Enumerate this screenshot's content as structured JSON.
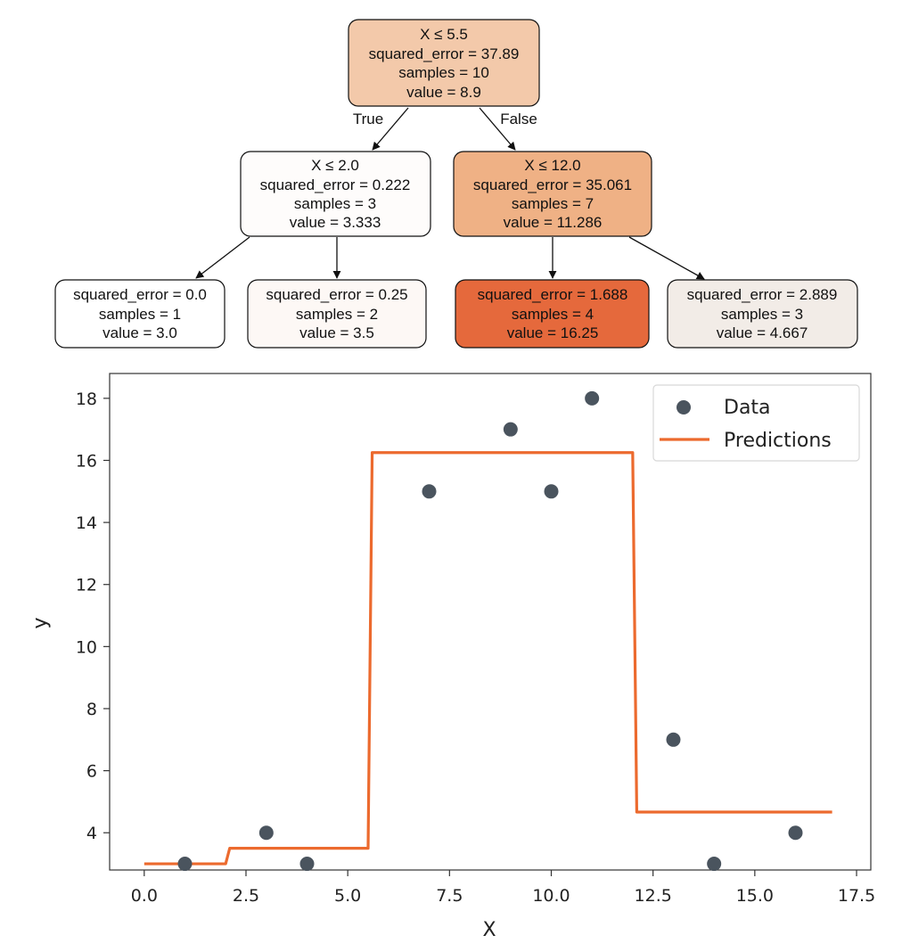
{
  "tree": {
    "edge_labels": {
      "left": "True",
      "right": "False"
    },
    "nodes": [
      {
        "id": "root",
        "lines": [
          "X ≤ 5.5",
          "squared_error = 37.89",
          "samples = 10",
          "value = 8.9"
        ],
        "fill": "#f3c9aa"
      },
      {
        "id": "left",
        "lines": [
          "X ≤ 2.0",
          "squared_error = 0.222",
          "samples = 3",
          "value = 3.333"
        ],
        "fill": "#fefcfb"
      },
      {
        "id": "right",
        "lines": [
          "X ≤ 12.0",
          "squared_error = 35.061",
          "samples = 7",
          "value = 11.286"
        ],
        "fill": "#efb185"
      },
      {
        "id": "ll",
        "lines": [
          "squared_error = 0.0",
          "samples = 1",
          "value = 3.0"
        ],
        "fill": "#ffffff"
      },
      {
        "id": "lr",
        "lines": [
          "squared_error = 0.25",
          "samples = 2",
          "value = 3.5"
        ],
        "fill": "#fdf8f5"
      },
      {
        "id": "rl",
        "lines": [
          "squared_error = 1.688",
          "samples = 4",
          "value = 16.25"
        ],
        "fill": "#e5693c"
      },
      {
        "id": "rr",
        "lines": [
          "squared_error = 2.889",
          "samples = 3",
          "value = 4.667"
        ],
        "fill": "#f2ece7"
      }
    ]
  },
  "chart_data": {
    "type": "scatter",
    "xlabel": "X",
    "ylabel": "y",
    "xlim": [
      -0.85,
      17.85
    ],
    "ylim": [
      2.8,
      18.8
    ],
    "xticks": [
      0.0,
      2.5,
      5.0,
      7.5,
      10.0,
      12.5,
      15.0,
      17.5
    ],
    "xtick_labels": [
      "0.0",
      "2.5",
      "5.0",
      "7.5",
      "10.0",
      "12.5",
      "15.0",
      "17.5"
    ],
    "yticks": [
      4,
      6,
      8,
      10,
      12,
      14,
      16,
      18
    ],
    "ytick_labels": [
      "4",
      "6",
      "8",
      "10",
      "12",
      "14",
      "16",
      "18"
    ],
    "grid": false,
    "legend_position": "top-right",
    "series": [
      {
        "name": "Data",
        "kind": "scatter",
        "color": "#4a545e",
        "points": [
          [
            1,
            3
          ],
          [
            3,
            4
          ],
          [
            4,
            3
          ],
          [
            7,
            15
          ],
          [
            9,
            17
          ],
          [
            10,
            15
          ],
          [
            11,
            18
          ],
          [
            13,
            7
          ],
          [
            14,
            3
          ],
          [
            16,
            4
          ]
        ]
      },
      {
        "name": "Predictions",
        "kind": "line",
        "color": "#ec6a2e",
        "points": [
          [
            0.0,
            3.0
          ],
          [
            2.0,
            3.0
          ],
          [
            2.1,
            3.5
          ],
          [
            5.5,
            3.5
          ],
          [
            5.6,
            16.25
          ],
          [
            12.0,
            16.25
          ],
          [
            12.1,
            4.667
          ],
          [
            16.9,
            4.667
          ]
        ]
      }
    ]
  }
}
